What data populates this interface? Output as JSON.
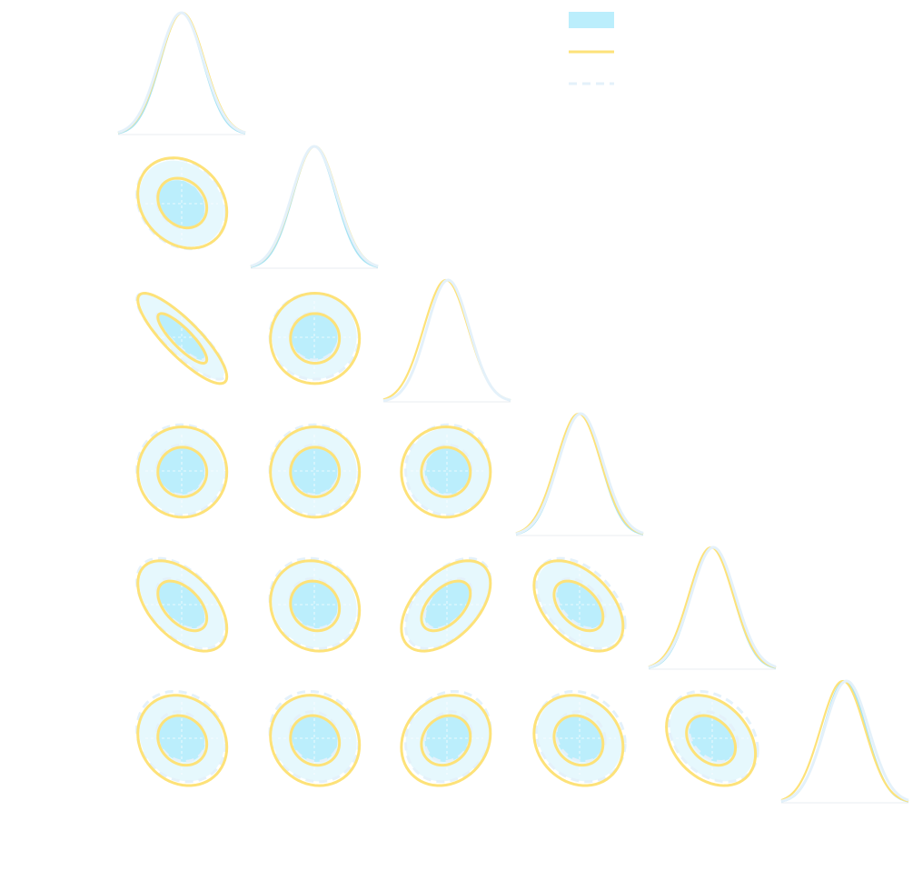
{
  "chart_data": {
    "type": "corner",
    "title": "",
    "n_params": 6,
    "grid": true,
    "legend_placement": "top-right",
    "series": [
      {
        "name": "",
        "style": "filled",
        "fill_color": "#bbeefc",
        "light_fill_color": "#e6f8fd",
        "line_color": "#a7e3f3",
        "means": [
          0.0,
          0.0,
          0.05,
          0.0,
          0.0,
          0.0
        ],
        "sigmas": [
          1.0,
          1.0,
          1.0,
          1.0,
          1.0,
          1.0
        ]
      },
      {
        "name": "",
        "style": "solid",
        "line_color": "#fde279",
        "means": [
          0.03,
          0.03,
          -0.05,
          -0.05,
          -0.06,
          -0.1
        ],
        "sigmas": [
          1.05,
          1.05,
          1.05,
          1.05,
          1.05,
          1.05
        ]
      },
      {
        "name": "",
        "style": "dashed",
        "line_color": "#e4f1fa",
        "means": [
          -0.02,
          0.0,
          0.05,
          0.05,
          0.05,
          0.08
        ],
        "sigmas": [
          1.05,
          1.05,
          1.0,
          1.05,
          1.05,
          1.05
        ]
      }
    ],
    "correlations": [
      [
        1.0,
        -0.2,
        -0.85,
        0.0,
        -0.5,
        -0.15
      ],
      [
        -0.2,
        1.0,
        0.0,
        0.0,
        -0.1,
        -0.1
      ],
      [
        -0.85,
        0.0,
        1.0,
        0.0,
        0.5,
        0.15
      ],
      [
        0.0,
        0.0,
        0.0,
        1.0,
        -0.45,
        -0.15
      ],
      [
        -0.5,
        -0.1,
        0.5,
        -0.45,
        1.0,
        -0.3
      ],
      [
        -0.15,
        -0.1,
        0.15,
        -0.15,
        -0.3,
        1.0
      ]
    ],
    "contour_levels_sigma": [
      1.1,
      2.0
    ],
    "axis_range": [
      -3,
      3
    ]
  }
}
